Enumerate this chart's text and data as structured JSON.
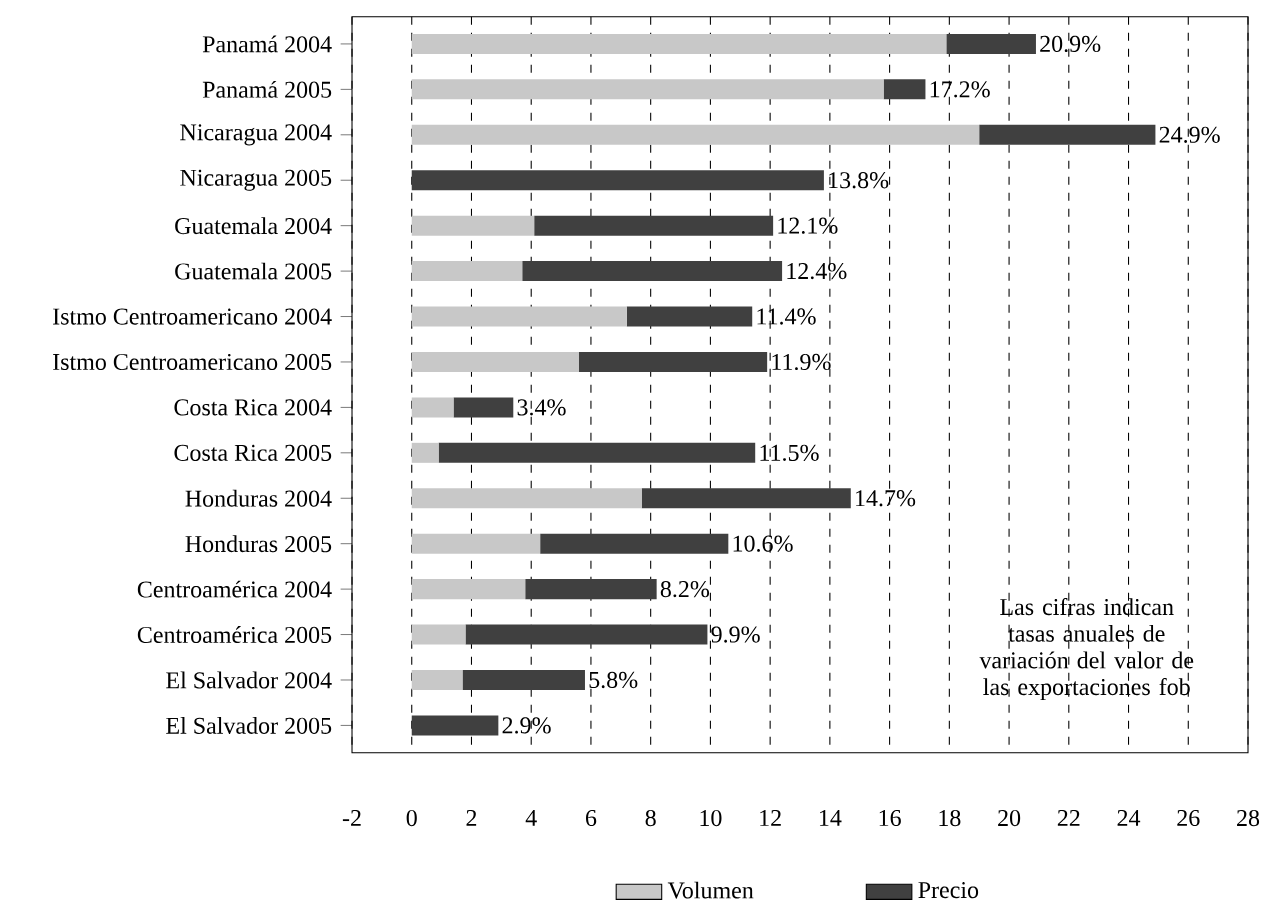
{
  "chart_data": {
    "type": "bar",
    "orientation": "horizontal",
    "stacked": true,
    "categories": [
      "Panamá 2004",
      "Panamá 2005",
      "Nicaragua 2004",
      "Nicaragua 2005",
      "Guatemala 2004",
      "Guatemala 2005",
      "Istmo Centroamericano 2004",
      "Istmo Centroamericano 2005",
      "Costa Rica 2004",
      "Costa Rica 2005",
      "Honduras 2004",
      "Honduras 2005",
      "Centroamérica 2004",
      "Centroamérica 2005",
      "El Salvador 2004",
      "El Salvador 2005"
    ],
    "series": [
      {
        "name": "Volumen",
        "color": "#c8c8c8",
        "values": [
          17.9,
          15.8,
          19.0,
          0,
          4.1,
          3.7,
          7.2,
          5.6,
          1.4,
          0.9,
          7.7,
          4.3,
          3.8,
          1.8,
          1.7,
          0
        ]
      },
      {
        "name": "Precio",
        "color": "#404040",
        "values": [
          3.0,
          1.4,
          5.9,
          13.8,
          8.0,
          8.7,
          4.2,
          6.3,
          2.0,
          10.6,
          7.0,
          6.3,
          4.4,
          8.1,
          4.1,
          2.9
        ]
      }
    ],
    "totals": [
      "20.9%",
      "17.2%",
      "24.9%",
      "13.8%",
      "12.1%",
      "12.4%",
      "11.4%",
      "11.9%",
      "3.4%",
      "11.5%",
      "14.7%",
      "10.6%",
      "8.2%",
      "9.9%",
      "5.8%",
      "2.9%"
    ],
    "xlim": [
      -2,
      28
    ],
    "xticks": [
      -2,
      0,
      2,
      4,
      6,
      8,
      10,
      12,
      14,
      16,
      18,
      20,
      22,
      24,
      26,
      28
    ],
    "grid": "x",
    "legend": "bottom",
    "annotations": [
      "Las cifras indican tasas anuales de variación del valor de las exportaciones fob"
    ]
  }
}
